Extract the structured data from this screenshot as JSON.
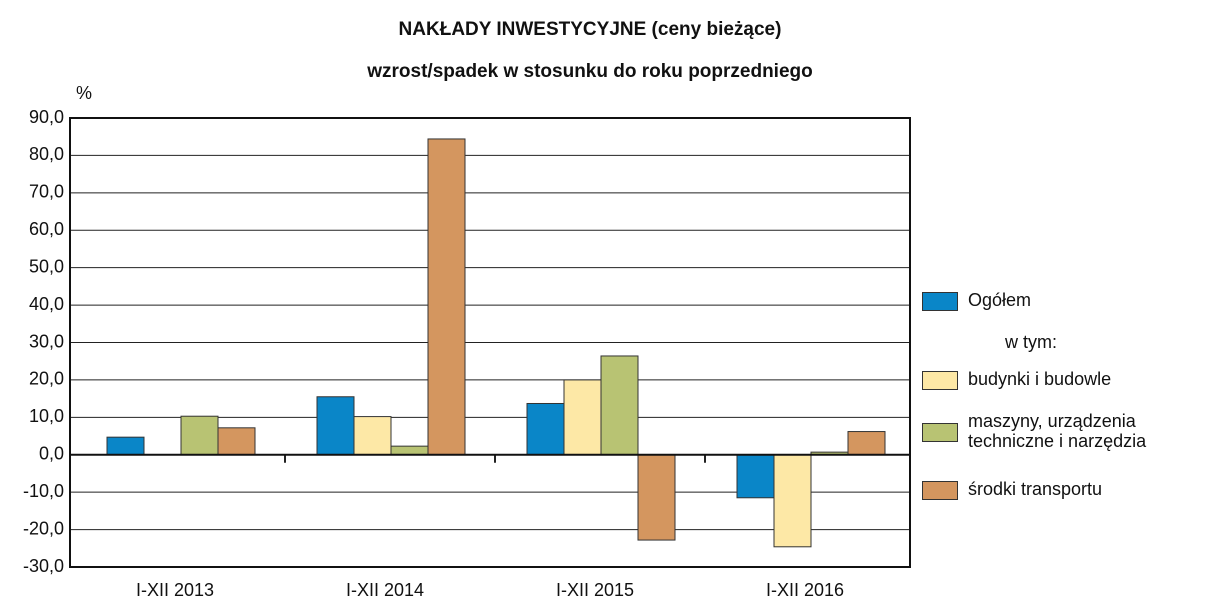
{
  "chart_data": {
    "type": "bar",
    "title": "NAKŁADY  INWESTYCYJNE  (ceny bieżące)",
    "subtitle": "wzrost/spadek w stosunku do roku poprzedniego",
    "y_label": "%",
    "legend_note": "w tym:",
    "categories": [
      "I-XII 2013",
      "I-XII 2014",
      "I-XII 2015",
      "I-XII 2016"
    ],
    "series": [
      {
        "name": "Ogółem",
        "color": "#0a86c8",
        "values": [
          4.7,
          15.5,
          13.7,
          -11.5
        ]
      },
      {
        "name": "budynki i budowle",
        "color": "#fde8a6",
        "values": [
          null,
          10.2,
          20.0,
          -24.6
        ]
      },
      {
        "name": "maszyny, urządzenia\ntechniczne i narzędzia",
        "color": "#b8c373",
        "values": [
          10.3,
          2.3,
          26.4,
          0.7
        ]
      },
      {
        "name": "środki transportu",
        "color": "#d4965f",
        "values": [
          7.2,
          84.4,
          -22.8,
          6.2
        ]
      }
    ],
    "ylim": [
      -30,
      90
    ],
    "yticks": [
      {
        "value": -30,
        "label": "-30,0"
      },
      {
        "value": -20,
        "label": "-20,0"
      },
      {
        "value": -10,
        "label": "-10,0"
      },
      {
        "value": 0,
        "label": "0,0"
      },
      {
        "value": 10,
        "label": "10,0"
      },
      {
        "value": 20,
        "label": "20,0"
      },
      {
        "value": 30,
        "label": "30,0"
      },
      {
        "value": 40,
        "label": "40,0"
      },
      {
        "value": 50,
        "label": "50,0"
      },
      {
        "value": 60,
        "label": "60,0"
      },
      {
        "value": 70,
        "label": "70,0"
      },
      {
        "value": 80,
        "label": "80,0"
      },
      {
        "value": 90,
        "label": "90,0"
      }
    ],
    "grid": true,
    "legend": "right"
  }
}
